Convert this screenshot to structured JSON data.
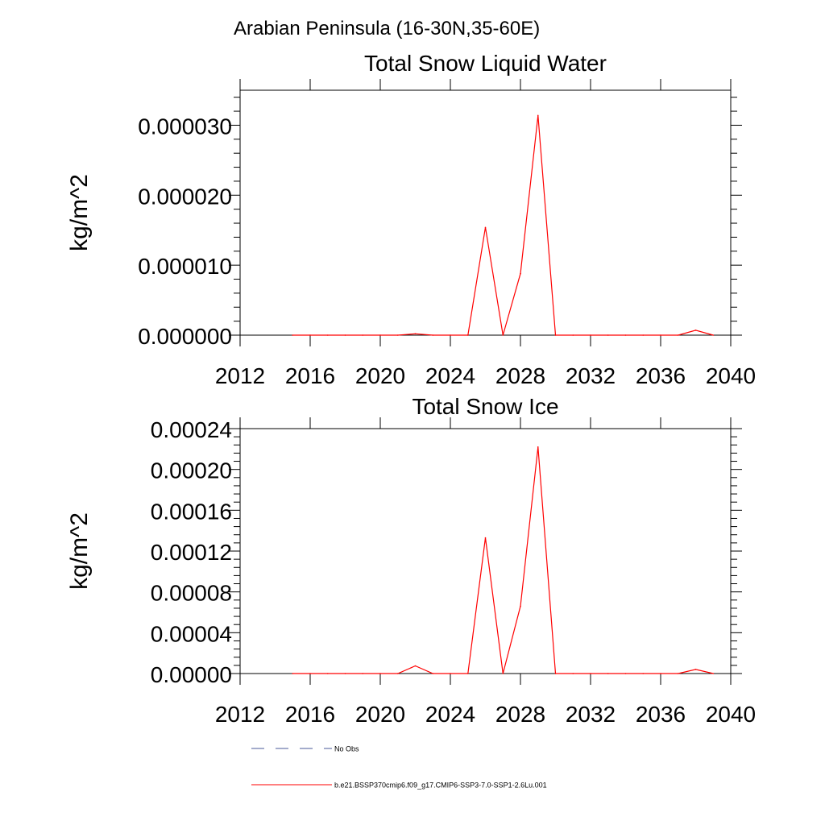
{
  "page_title": "Arabian Peninsula (16-30N,35-60E)",
  "chart_data": [
    {
      "type": "line",
      "title": "Total Snow Liquid Water",
      "xlabel": "",
      "ylabel": "kg/m^2",
      "xlim": [
        2012,
        2040
      ],
      "ylim": [
        0,
        3.5e-05
      ],
      "xticks": [
        2012,
        2016,
        2020,
        2024,
        2028,
        2032,
        2036,
        2040
      ],
      "xtick_labels": [
        "2012",
        "2016",
        "2020",
        "2024",
        "2028",
        "2032",
        "2036",
        "2040"
      ],
      "yticks": [
        0,
        1e-05,
        2e-05,
        3e-05
      ],
      "ytick_labels": [
        "0.000000",
        "0.000010",
        "0.000020",
        "0.000030"
      ],
      "grid": false,
      "series": [
        {
          "name": "b.e21.BSSP370cmip6.f09_g17.CMIP6-SSP3-7.0-SSP1-2.6Lu.001",
          "color": "#ff0000",
          "x": [
            2015,
            2016,
            2017,
            2018,
            2019,
            2020,
            2021,
            2022,
            2023,
            2024,
            2025,
            2026,
            2027,
            2028,
            2029,
            2030,
            2031,
            2032,
            2033,
            2034,
            2035,
            2036,
            2037,
            2038,
            2039
          ],
          "y": [
            0,
            0,
            0,
            0,
            0,
            0,
            0,
            2e-07,
            0,
            0,
            0,
            1.54e-05,
            0,
            8.8e-06,
            3.14e-05,
            0,
            0,
            0,
            0,
            0,
            0,
            0,
            0,
            7e-07,
            0
          ]
        }
      ]
    },
    {
      "type": "line",
      "title": "Total Snow Ice",
      "xlabel": "",
      "ylabel": "kg/m^2",
      "xlim": [
        2012,
        2040
      ],
      "ylim": [
        0,
        0.00024
      ],
      "xticks": [
        2012,
        2016,
        2020,
        2024,
        2028,
        2032,
        2036,
        2040
      ],
      "xtick_labels": [
        "2012",
        "2016",
        "2020",
        "2024",
        "2028",
        "2032",
        "2036",
        "2040"
      ],
      "yticks": [
        0,
        4e-05,
        8e-05,
        0.00012,
        0.00016,
        0.0002,
        0.00024
      ],
      "ytick_labels": [
        "0.00000",
        "0.00004",
        "0.00008",
        "0.00012",
        "0.00016",
        "0.00020",
        "0.00024"
      ],
      "grid": false,
      "series": [
        {
          "name": "b.e21.BSSP370cmip6.f09_g17.CMIP6-SSP3-7.0-SSP1-2.6Lu.001",
          "color": "#ff0000",
          "x": [
            2015,
            2016,
            2017,
            2018,
            2019,
            2020,
            2021,
            2022,
            2023,
            2024,
            2025,
            2026,
            2027,
            2028,
            2029,
            2030,
            2031,
            2032,
            2033,
            2034,
            2035,
            2036,
            2037,
            2038,
            2039
          ],
          "y": [
            0,
            0,
            0,
            0,
            0,
            0,
            0,
            7.5e-06,
            0,
            0,
            0,
            0.000133,
            0,
            6.6e-05,
            0.000222,
            0,
            0,
            0,
            0,
            0,
            0,
            0,
            0,
            4e-06,
            0
          ]
        }
      ]
    }
  ],
  "legend": {
    "placement": "bottom-left",
    "items": [
      {
        "label": "No Obs",
        "color": "#4a5a9a",
        "dash": "dashed"
      },
      {
        "label": "b.e21.BSSP370cmip6.f09_g17.CMIP6-SSP3-7.0-SSP1-2.6Lu.001",
        "color": "#ff0000",
        "dash": "solid"
      }
    ]
  }
}
